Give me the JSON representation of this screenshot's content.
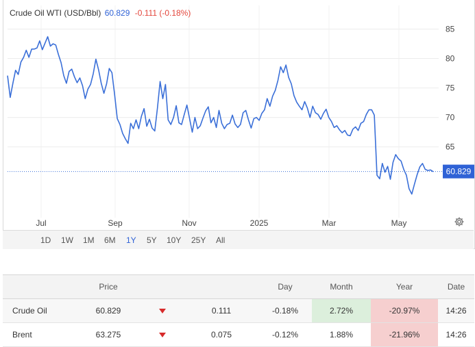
{
  "header": {
    "title": "Crude Oil WTI (USD/Bbl)",
    "price": "60.829",
    "change": "-0.111 (-0.18%)"
  },
  "colors": {
    "line": "#3a6fd8",
    "accent": "#2f62d6",
    "negative": "#e3453b",
    "down_arrow": "#d72b2b",
    "pos_cell": "#dcefdc",
    "neg_cell": "#f6cfcf"
  },
  "chart_data": {
    "type": "line",
    "title": "Crude Oil WTI (USD/Bbl)",
    "ylim": [
      53,
      89
    ],
    "y_ticks": [
      "85",
      "80",
      "75",
      "70",
      "65"
    ],
    "x_ticks": [
      "Jul",
      "Sep",
      "Nov",
      "2025",
      "Mar",
      "May"
    ],
    "last_value_label": "60.829",
    "reference_value": 60.83,
    "series": [
      {
        "name": "Crude Oil WTI",
        "values": [
          77.1,
          73.4,
          75.8,
          78.0,
          77.3,
          79.4,
          80.2,
          81.4,
          80.2,
          81.6,
          81.6,
          81.8,
          83.0,
          81.5,
          82.6,
          83.7,
          82.1,
          82.5,
          82.3,
          80.7,
          79.3,
          77.1,
          75.8,
          77.8,
          78.2,
          76.9,
          75.9,
          76.7,
          75.4,
          73.2,
          74.8,
          75.6,
          77.4,
          79.9,
          78.1,
          75.8,
          74.1,
          75.7,
          78.3,
          77.6,
          73.9,
          69.8,
          68.8,
          67.3,
          66.4,
          65.6,
          69.0,
          68.1,
          69.6,
          68.1,
          70.2,
          71.5,
          68.5,
          69.7,
          68.2,
          67.7,
          71.6,
          76.1,
          73.2,
          75.6,
          69.6,
          68.8,
          70.0,
          72.0,
          69.1,
          68.8,
          70.5,
          72.1,
          69.8,
          67.5,
          70.0,
          68.1,
          68.6,
          69.9,
          71.1,
          71.8,
          69.1,
          70.0,
          68.3,
          71.2,
          69.0,
          68.1,
          68.8,
          69.0,
          70.4,
          68.9,
          68.3,
          68.8,
          70.8,
          71.2,
          69.6,
          68.2,
          69.8,
          70.0,
          69.5,
          70.7,
          71.3,
          73.2,
          71.9,
          73.6,
          74.6,
          76.3,
          78.6,
          77.6,
          78.9,
          76.8,
          75.7,
          73.7,
          72.6,
          71.9,
          71.3,
          72.7,
          71.6,
          70.0,
          71.9,
          70.8,
          70.5,
          69.7,
          70.7,
          71.4,
          70.0,
          69.3,
          68.3,
          68.6,
          67.9,
          67.4,
          67.8,
          67.0,
          66.9,
          68.0,
          68.4,
          67.8,
          69.0,
          69.3,
          70.5,
          71.3,
          71.3,
          70.4,
          60.2,
          59.6,
          62.2,
          60.7,
          61.7,
          59.5,
          62.4,
          63.7,
          63.0,
          62.6,
          61.2,
          60.2,
          57.9,
          57.0,
          58.7,
          60.3,
          61.6,
          62.2,
          61.2,
          61.0,
          61.1,
          60.8
        ]
      }
    ]
  },
  "range_tabs": [
    "1D",
    "1W",
    "1M",
    "6M",
    "1Y",
    "5Y",
    "10Y",
    "25Y",
    "All"
  ],
  "active_range": "1Y",
  "table": {
    "headers": {
      "price": "Price",
      "day": "Day",
      "month": "Month",
      "year": "Year",
      "date": "Date"
    },
    "rows": [
      {
        "name": "Crude Oil",
        "price": "60.829",
        "change": "0.111",
        "day": "-0.18%",
        "month": "2.72%",
        "year": "-20.97%",
        "date": "14:26"
      },
      {
        "name": "Brent",
        "price": "63.275",
        "change": "0.075",
        "day": "-0.12%",
        "month": "1.88%",
        "year": "-21.96%",
        "date": "14:26"
      }
    ]
  }
}
